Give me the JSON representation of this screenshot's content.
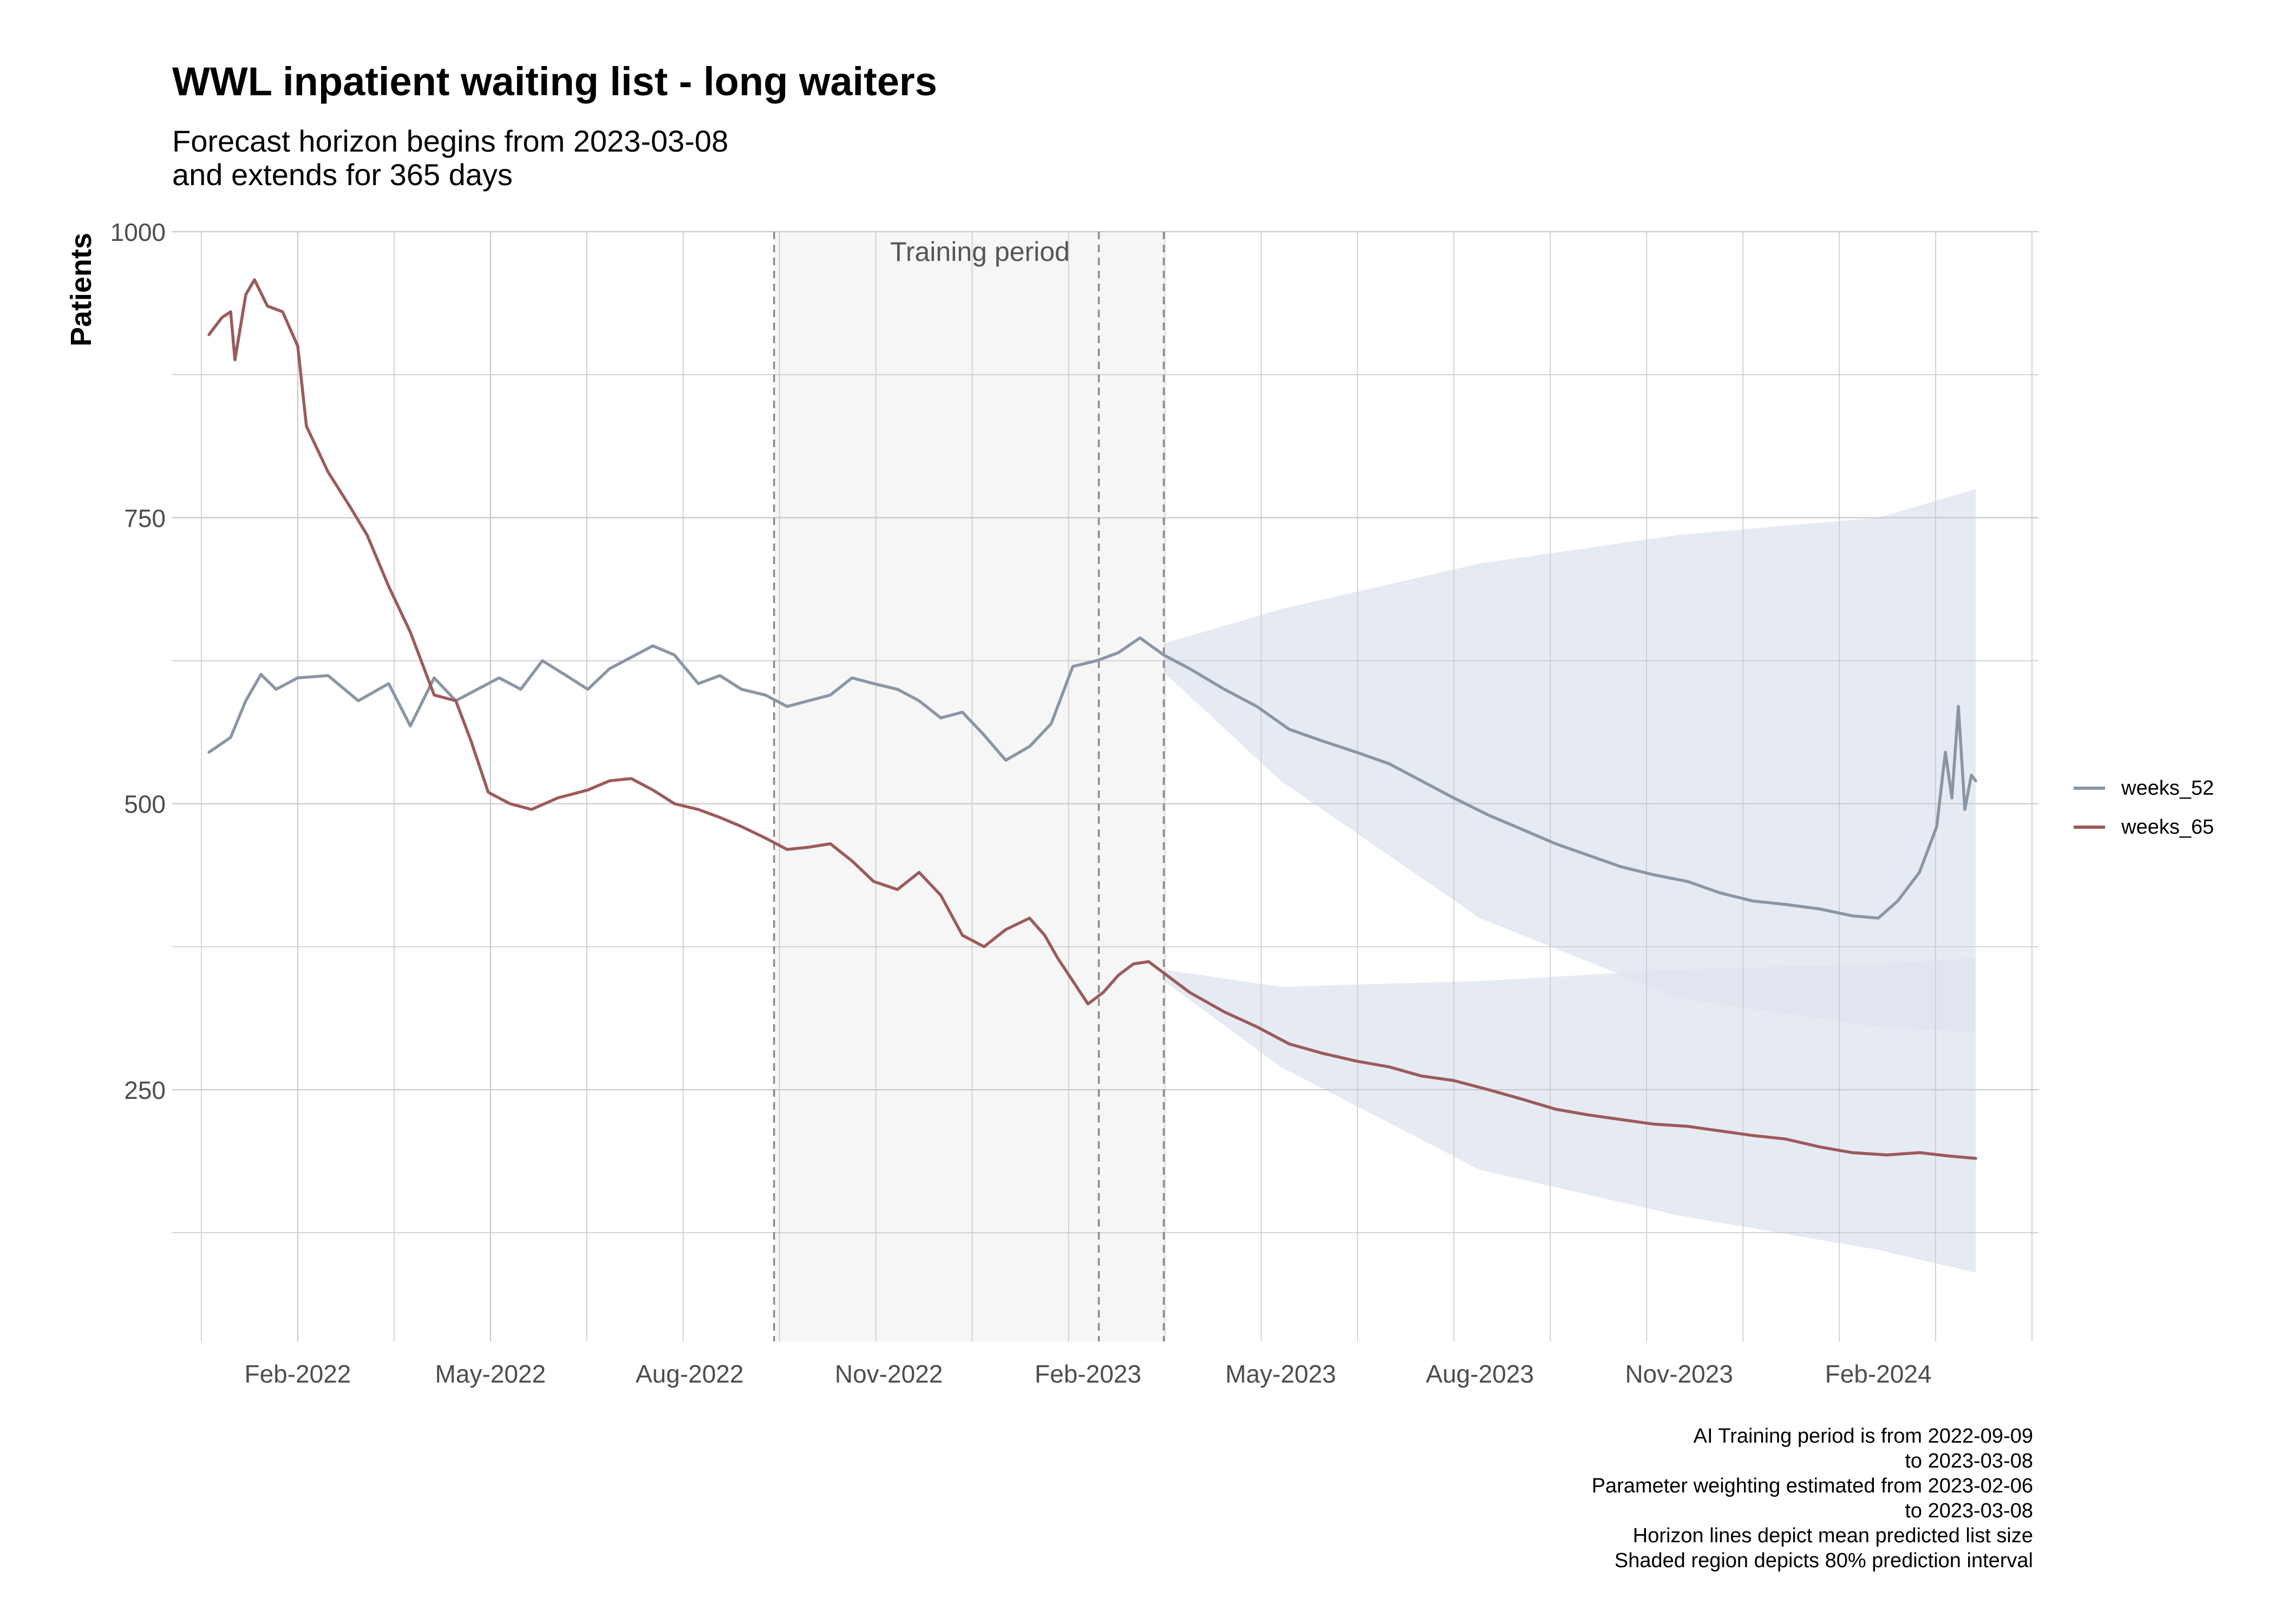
{
  "title": "WWL inpatient waiting list - long waiters",
  "subtitle_lines": [
    "Forecast horizon begins from 2023-03-08",
    "and extends for 365 days"
  ],
  "caption_lines": [
    "AI Training period is from 2022-09-09",
    "to 2023-03-08",
    "Parameter weighting estimated from 2023-02-06",
    "to 2023-03-08",
    "Horizon lines depict mean predicted list size",
    "Shaded region depicts 80% prediction interval"
  ],
  "chart_data": {
    "type": "line",
    "xlabel": "",
    "ylabel": "Patients",
    "x_type": "date",
    "xlim": [
      "2021-12-05",
      "2024-04-15"
    ],
    "ylim": [
      30,
      1000
    ],
    "x_ticks": [
      "2022-02-01",
      "2022-05-01",
      "2022-08-01",
      "2022-11-01",
      "2023-02-01",
      "2023-05-01",
      "2023-08-01",
      "2023-11-01",
      "2024-02-01"
    ],
    "x_tick_labels": [
      "Feb-2022",
      "May-2022",
      "Aug-2022",
      "Nov-2022",
      "Feb-2023",
      "May-2023",
      "Aug-2023",
      "Nov-2023",
      "Feb-2024"
    ],
    "y_ticks": [
      250,
      500,
      750,
      1000
    ],
    "y_tick_labels": [
      "250",
      "500",
      "750",
      "1000"
    ],
    "grid": true,
    "legend_position": "right",
    "training_period": {
      "start": "2022-09-09",
      "end": "2023-03-08",
      "label": "Training period",
      "markers": [
        "2022-09-09",
        "2023-02-06",
        "2023-03-08"
      ]
    },
    "forecast_start": "2023-03-08",
    "series": [
      {
        "name": "weeks_52",
        "color": "#8a96a3",
        "points": [
          [
            "2021-12-22",
            545
          ],
          [
            "2022-01-01",
            558
          ],
          [
            "2022-01-08",
            590
          ],
          [
            "2022-01-15",
            613
          ],
          [
            "2022-01-22",
            600
          ],
          [
            "2022-02-01",
            610
          ],
          [
            "2022-02-15",
            612
          ],
          [
            "2022-03-01",
            590
          ],
          [
            "2022-03-15",
            605
          ],
          [
            "2022-03-25",
            568
          ],
          [
            "2022-04-05",
            610
          ],
          [
            "2022-04-15",
            590
          ],
          [
            "2022-04-25",
            600
          ],
          [
            "2022-05-05",
            610
          ],
          [
            "2022-05-15",
            600
          ],
          [
            "2022-05-25",
            625
          ],
          [
            "2022-06-05",
            612
          ],
          [
            "2022-06-15",
            600
          ],
          [
            "2022-06-25",
            618
          ],
          [
            "2022-07-05",
            628
          ],
          [
            "2022-07-15",
            638
          ],
          [
            "2022-07-25",
            630
          ],
          [
            "2022-08-05",
            605
          ],
          [
            "2022-08-15",
            612
          ],
          [
            "2022-08-25",
            600
          ],
          [
            "2022-09-05",
            595
          ],
          [
            "2022-09-15",
            585
          ],
          [
            "2022-09-25",
            590
          ],
          [
            "2022-10-05",
            595
          ],
          [
            "2022-10-15",
            610
          ],
          [
            "2022-10-25",
            605
          ],
          [
            "2022-11-05",
            600
          ],
          [
            "2022-11-15",
            590
          ],
          [
            "2022-11-25",
            575
          ],
          [
            "2022-12-05",
            580
          ],
          [
            "2022-12-15",
            560
          ],
          [
            "2022-12-25",
            538
          ],
          [
            "2023-01-05",
            550
          ],
          [
            "2023-01-15",
            570
          ],
          [
            "2023-01-25",
            620
          ],
          [
            "2023-02-05",
            625
          ],
          [
            "2023-02-15",
            632
          ],
          [
            "2023-02-25",
            645
          ],
          [
            "2023-03-08",
            630
          ],
          [
            "2023-03-20",
            618
          ],
          [
            "2023-04-05",
            600
          ],
          [
            "2023-04-20",
            585
          ],
          [
            "2023-05-05",
            565
          ],
          [
            "2023-05-20",
            555
          ],
          [
            "2023-06-05",
            545
          ],
          [
            "2023-06-20",
            535
          ],
          [
            "2023-07-05",
            520
          ],
          [
            "2023-07-20",
            505
          ],
          [
            "2023-08-05",
            490
          ],
          [
            "2023-08-20",
            478
          ],
          [
            "2023-09-05",
            465
          ],
          [
            "2023-09-20",
            455
          ],
          [
            "2023-10-05",
            445
          ],
          [
            "2023-10-20",
            438
          ],
          [
            "2023-11-05",
            432
          ],
          [
            "2023-11-20",
            422
          ],
          [
            "2023-12-05",
            415
          ],
          [
            "2023-12-20",
            412
          ],
          [
            "2024-01-05",
            408
          ],
          [
            "2024-01-20",
            402
          ],
          [
            "2024-02-01",
            400
          ],
          [
            "2024-02-10",
            415
          ],
          [
            "2024-02-20",
            440
          ],
          [
            "2024-02-28",
            480
          ],
          [
            "2024-03-03",
            545
          ],
          [
            "2024-03-06",
            505
          ],
          [
            "2024-03-09",
            585
          ],
          [
            "2024-03-12",
            495
          ],
          [
            "2024-03-15",
            525
          ],
          [
            "2024-03-17",
            520
          ]
        ]
      },
      {
        "name": "weeks_65",
        "color": "#9c5b5a",
        "points": [
          [
            "2021-12-22",
            910
          ],
          [
            "2021-12-28",
            925
          ],
          [
            "2022-01-01",
            930
          ],
          [
            "2022-01-03",
            888
          ],
          [
            "2022-01-08",
            945
          ],
          [
            "2022-01-12",
            958
          ],
          [
            "2022-01-18",
            935
          ],
          [
            "2022-01-25",
            930
          ],
          [
            "2022-02-01",
            900
          ],
          [
            "2022-02-05",
            830
          ],
          [
            "2022-02-15",
            790
          ],
          [
            "2022-02-25",
            760
          ],
          [
            "2022-03-05",
            735
          ],
          [
            "2022-03-15",
            690
          ],
          [
            "2022-03-25",
            650
          ],
          [
            "2022-04-05",
            595
          ],
          [
            "2022-04-15",
            590
          ],
          [
            "2022-04-22",
            555
          ],
          [
            "2022-04-30",
            510
          ],
          [
            "2022-05-10",
            500
          ],
          [
            "2022-05-20",
            495
          ],
          [
            "2022-06-01",
            505
          ],
          [
            "2022-06-15",
            512
          ],
          [
            "2022-06-25",
            520
          ],
          [
            "2022-07-05",
            522
          ],
          [
            "2022-07-15",
            512
          ],
          [
            "2022-07-25",
            500
          ],
          [
            "2022-08-05",
            495
          ],
          [
            "2022-08-15",
            488
          ],
          [
            "2022-08-25",
            480
          ],
          [
            "2022-09-05",
            470
          ],
          [
            "2022-09-15",
            460
          ],
          [
            "2022-09-25",
            462
          ],
          [
            "2022-10-05",
            465
          ],
          [
            "2022-10-15",
            450
          ],
          [
            "2022-10-25",
            432
          ],
          [
            "2022-11-05",
            425
          ],
          [
            "2022-11-15",
            440
          ],
          [
            "2022-11-25",
            420
          ],
          [
            "2022-12-05",
            385
          ],
          [
            "2022-12-15",
            375
          ],
          [
            "2022-12-25",
            390
          ],
          [
            "2023-01-05",
            400
          ],
          [
            "2023-01-12",
            385
          ],
          [
            "2023-01-18",
            365
          ],
          [
            "2023-01-25",
            345
          ],
          [
            "2023-02-01",
            325
          ],
          [
            "2023-02-08",
            335
          ],
          [
            "2023-02-15",
            350
          ],
          [
            "2023-02-22",
            360
          ],
          [
            "2023-03-01",
            362
          ],
          [
            "2023-03-08",
            352
          ],
          [
            "2023-03-20",
            335
          ],
          [
            "2023-04-05",
            318
          ],
          [
            "2023-04-20",
            305
          ],
          [
            "2023-05-05",
            290
          ],
          [
            "2023-05-20",
            282
          ],
          [
            "2023-06-05",
            275
          ],
          [
            "2023-06-20",
            270
          ],
          [
            "2023-07-05",
            262
          ],
          [
            "2023-07-20",
            258
          ],
          [
            "2023-08-05",
            250
          ],
          [
            "2023-08-20",
            242
          ],
          [
            "2023-09-05",
            233
          ],
          [
            "2023-09-20",
            228
          ],
          [
            "2023-10-05",
            224
          ],
          [
            "2023-10-20",
            220
          ],
          [
            "2023-11-05",
            218
          ],
          [
            "2023-11-20",
            214
          ],
          [
            "2023-12-05",
            210
          ],
          [
            "2023-12-20",
            207
          ],
          [
            "2024-01-05",
            200
          ],
          [
            "2024-01-20",
            195
          ],
          [
            "2024-02-05",
            193
          ],
          [
            "2024-02-20",
            195
          ],
          [
            "2024-03-05",
            192
          ],
          [
            "2024-03-17",
            190
          ]
        ]
      }
    ],
    "forecast_bands": [
      {
        "series": "weeks_52",
        "color": "#dde3ee",
        "x": [
          "2023-03-08",
          "2023-05-01",
          "2023-08-01",
          "2023-11-01",
          "2024-02-01",
          "2024-03-17"
        ],
        "lower": [
          615,
          520,
          400,
          330,
          305,
          300
        ],
        "upper": [
          640,
          670,
          710,
          735,
          750,
          775
        ]
      },
      {
        "series": "weeks_65",
        "color": "#dde3ee",
        "x": [
          "2023-03-08",
          "2023-05-01",
          "2023-08-01",
          "2023-11-01",
          "2024-02-01",
          "2024-03-17"
        ],
        "lower": [
          345,
          270,
          180,
          140,
          110,
          90
        ],
        "upper": [
          355,
          340,
          345,
          355,
          360,
          365
        ]
      }
    ]
  }
}
